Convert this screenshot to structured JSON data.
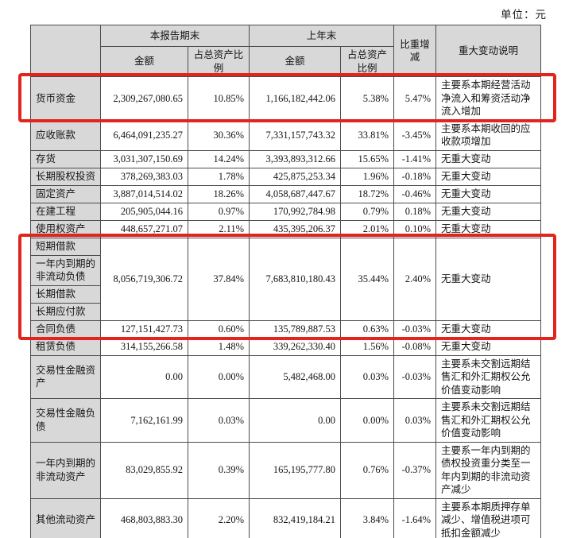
{
  "unit_label": "单位：元",
  "highlight_color": "#e2241d",
  "table": {
    "headers": {
      "corner": "",
      "report_period_end": "本报告期末",
      "prior_year_end": "上年末",
      "amount": "金额",
      "ratio_of_total_assets": "占总资产比例",
      "weight_change": "比重增减",
      "major_change_note": "重大变动说明"
    },
    "rows": [
      {
        "labels": [
          "货币资金"
        ],
        "current_amount": "2,309,267,080.65",
        "current_ratio": "10.85%",
        "prev_amount": "1,166,182,442.06",
        "prev_ratio": "5.38%",
        "change": "5.47%",
        "note": "主要系本期经营活动净流入和筹资活动净流入增加"
      },
      {
        "labels": [
          "应收账款"
        ],
        "current_amount": "6,464,091,235.27",
        "current_ratio": "30.36%",
        "prev_amount": "7,331,157,743.32",
        "prev_ratio": "33.81%",
        "change": "-3.45%",
        "note": "主要系本期收回的应收款项增加"
      },
      {
        "labels": [
          "存货"
        ],
        "current_amount": "3,031,307,150.69",
        "current_ratio": "14.24%",
        "prev_amount": "3,393,893,312.66",
        "prev_ratio": "15.65%",
        "change": "-1.41%",
        "note": "无重大变动"
      },
      {
        "labels": [
          "长期股权投资"
        ],
        "current_amount": "378,269,383.03",
        "current_ratio": "1.78%",
        "prev_amount": "425,875,253.34",
        "prev_ratio": "1.96%",
        "change": "-0.18%",
        "note": "无重大变动"
      },
      {
        "labels": [
          "固定资产"
        ],
        "current_amount": "3,887,014,514.02",
        "current_ratio": "18.26%",
        "prev_amount": "4,058,687,447.67",
        "prev_ratio": "18.72%",
        "change": "-0.46%",
        "note": "无重大变动"
      },
      {
        "labels": [
          "在建工程"
        ],
        "current_amount": "205,905,044.16",
        "current_ratio": "0.97%",
        "prev_amount": "170,992,784.98",
        "prev_ratio": "0.79%",
        "change": "0.18%",
        "note": "无重大变动"
      },
      {
        "labels": [
          "使用权资产"
        ],
        "current_amount": "448,657,271.07",
        "current_ratio": "2.11%",
        "prev_amount": "435,395,206.37",
        "prev_ratio": "2.01%",
        "change": "0.10%",
        "note": "无重大变动"
      },
      {
        "labels": [
          "短期借款",
          "一年内到期的非流动负债",
          "长期借款",
          "长期应付款"
        ],
        "current_amount": "8,056,719,306.72",
        "current_ratio": "37.84%",
        "prev_amount": "7,683,810,180.43",
        "prev_ratio": "35.44%",
        "change": "2.40%",
        "note": "无重大变动"
      },
      {
        "labels": [
          "合同负债"
        ],
        "current_amount": "127,151,427.73",
        "current_ratio": "0.60%",
        "prev_amount": "135,789,887.53",
        "prev_ratio": "0.63%",
        "change": "-0.03%",
        "note": "无重大变动"
      },
      {
        "labels": [
          "租赁负债"
        ],
        "current_amount": "314,155,266.58",
        "current_ratio": "1.48%",
        "prev_amount": "339,262,330.40",
        "prev_ratio": "1.56%",
        "change": "-0.08%",
        "note": "无重大变动"
      },
      {
        "labels": [
          "交易性金融资产"
        ],
        "current_amount": "0.00",
        "current_ratio": "0.00%",
        "prev_amount": "5,482,468.00",
        "prev_ratio": "0.03%",
        "change": "-0.03%",
        "note": "主要系未交割远期结售汇和外汇期权公允价值变动影响"
      },
      {
        "labels": [
          "交易性金融负债"
        ],
        "current_amount": "7,162,161.99",
        "current_ratio": "0.03%",
        "prev_amount": "0.00",
        "prev_ratio": "0.00%",
        "change": "0.03%",
        "note": "主要系未交割远期结售汇和外汇期权公允价值变动影响"
      },
      {
        "labels": [
          "一年内到期的非流动资产"
        ],
        "current_amount": "83,029,855.92",
        "current_ratio": "0.39%",
        "prev_amount": "165,195,777.80",
        "prev_ratio": "0.76%",
        "change": "-0.37%",
        "note": "主要系一年内到期的债权投资重分类至一年内到期的非流动资产减少"
      },
      {
        "labels": [
          "其他流动资产"
        ],
        "current_amount": "468,803,883.30",
        "current_ratio": "2.20%",
        "prev_amount": "832,419,184.21",
        "prev_ratio": "3.84%",
        "change": "-1.64%",
        "note": "主要系本期质押存单减少、增值税进项可抵扣金额减少"
      }
    ]
  },
  "highlights": [
    {
      "from_row": 0,
      "to_row": 0
    },
    {
      "from_row": 7,
      "to_row": 8
    }
  ]
}
